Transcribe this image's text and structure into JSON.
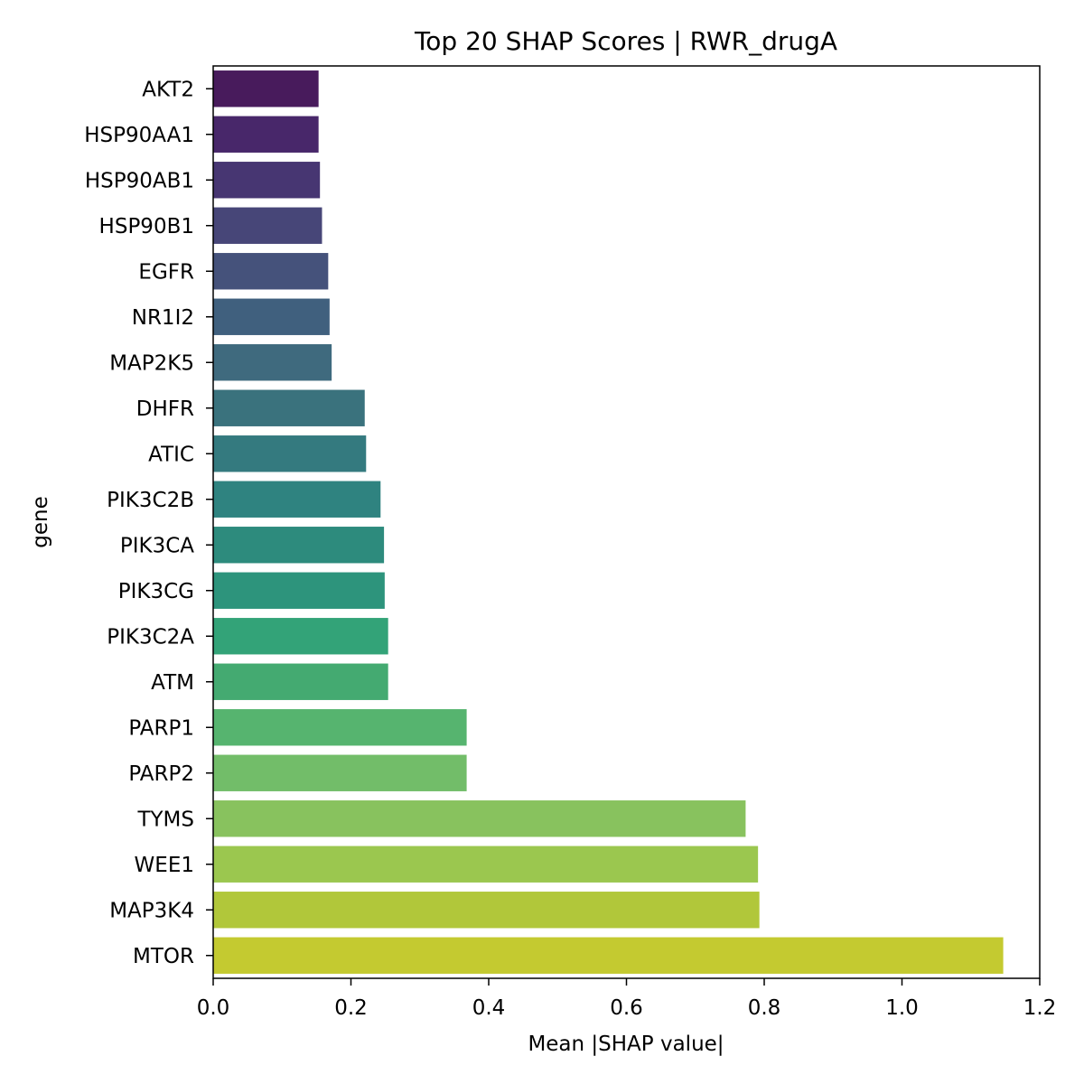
{
  "chart_data": {
    "type": "bar",
    "orientation": "horizontal",
    "title": "Top 20 SHAP Scores | RWR_drugA",
    "xlabel": "Mean |SHAP value|",
    "ylabel": "gene",
    "xlim": [
      0,
      1.2
    ],
    "xticks": [
      "0.0",
      "0.2",
      "0.4",
      "0.6",
      "0.8",
      "1.0",
      "1.2"
    ],
    "grid": false,
    "legend": "none",
    "colormap": "viridis",
    "categories": [
      "AKT2",
      "HSP90AA1",
      "HSP90AB1",
      "HSP90B1",
      "EGFR",
      "NR1I2",
      "MAP2K5",
      "DHFR",
      "ATIC",
      "PIK3C2B",
      "PIK3CA",
      "PIK3CG",
      "PIK3C2A",
      "ATM",
      "PARP1",
      "PARP2",
      "TYMS",
      "WEE1",
      "MAP3K4",
      "MTOR"
    ],
    "values": [
      0.153,
      0.153,
      0.155,
      0.158,
      0.167,
      0.169,
      0.172,
      0.22,
      0.222,
      0.243,
      0.248,
      0.249,
      0.254,
      0.254,
      0.368,
      0.368,
      0.773,
      0.791,
      0.793,
      1.147
    ],
    "colors": [
      "#481b5c",
      "#48276a",
      "#473672",
      "#474678",
      "#45527b",
      "#40607e",
      "#3f6a7e",
      "#3a727d",
      "#347a7f",
      "#2f8380",
      "#2d8b7d",
      "#2d947c",
      "#33a378",
      "#44aa71",
      "#56b46f",
      "#72bd69",
      "#88c25e",
      "#9bc74f",
      "#b1c73a",
      "#c4ca30"
    ]
  }
}
